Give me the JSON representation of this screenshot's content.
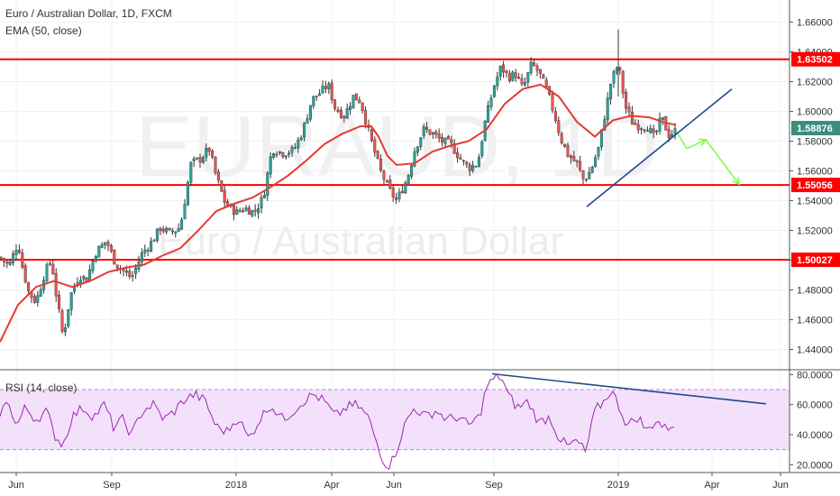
{
  "header": {
    "title": "Euro / Australian Dollar, 1D, FXCM",
    "indicator": "EMA (50, close)",
    "rsi_label": "RSI (14, close)"
  },
  "watermark": {
    "symbol": "EURAUD, 1D",
    "name": "Euro / Australian Dollar"
  },
  "colors": {
    "up": "#26a69a",
    "down": "#ef5350",
    "ema": "#e53935",
    "level": "#ff0000",
    "trend": "#1e4b8f",
    "projection": "#7cff4a",
    "rsi_line": "#9c27b0",
    "rsi_band": "#f3e1fb",
    "current_tag": "#3d8c7c"
  },
  "chart_data": {
    "type": "candlestick",
    "y_axis": {
      "range": [
        1.43,
        1.67
      ],
      "ticks": [
        "1.66000",
        "1.64000",
        "1.62000",
        "1.60000",
        "1.58000",
        "1.56000",
        "1.54000",
        "1.52000",
        "1.50000",
        "1.48000",
        "1.46000",
        "1.44000"
      ]
    },
    "x_axis": {
      "ticks": [
        "Jun",
        "Sep",
        "2018",
        "Apr",
        "Jun",
        "Sep",
        "2019",
        "Apr",
        "Jun"
      ]
    },
    "levels": [
      {
        "value": 1.63502,
        "label": "1.63502"
      },
      {
        "value": 1.55056,
        "label": "1.55056"
      },
      {
        "value": 1.50027,
        "label": "1.50027"
      }
    ],
    "current_price": {
      "value": 1.58876,
      "label": "1.58876"
    },
    "price_path": [
      [
        0,
        1.502
      ],
      [
        10,
        1.496
      ],
      [
        20,
        1.512
      ],
      [
        25,
        1.495
      ],
      [
        32,
        1.478
      ],
      [
        40,
        1.472
      ],
      [
        50,
        1.492
      ],
      [
        57,
        1.5
      ],
      [
        62,
        1.478
      ],
      [
        70,
        1.448
      ],
      [
        78,
        1.476
      ],
      [
        88,
        1.49
      ],
      [
        96,
        1.487
      ],
      [
        106,
        1.505
      ],
      [
        118,
        1.513
      ],
      [
        128,
        1.498
      ],
      [
        138,
        1.492
      ],
      [
        146,
        1.488
      ],
      [
        158,
        1.505
      ],
      [
        168,
        1.512
      ],
      [
        178,
        1.522
      ],
      [
        188,
        1.518
      ],
      [
        200,
        1.522
      ],
      [
        212,
        1.565
      ],
      [
        222,
        1.568
      ],
      [
        232,
        1.575
      ],
      [
        240,
        1.556
      ],
      [
        250,
        1.538
      ],
      [
        262,
        1.532
      ],
      [
        272,
        1.535
      ],
      [
        282,
        1.532
      ],
      [
        292,
        1.542
      ],
      [
        302,
        1.575
      ],
      [
        314,
        1.572
      ],
      [
        326,
        1.574
      ],
      [
        336,
        1.587
      ],
      [
        346,
        1.608
      ],
      [
        356,
        1.613
      ],
      [
        364,
        1.618
      ],
      [
        372,
        1.602
      ],
      [
        382,
        1.597
      ],
      [
        392,
        1.61
      ],
      [
        400,
        1.607
      ],
      [
        410,
        1.584
      ],
      [
        422,
        1.56
      ],
      [
        432,
        1.547
      ],
      [
        440,
        1.54
      ],
      [
        452,
        1.555
      ],
      [
        460,
        1.574
      ],
      [
        470,
        1.588
      ],
      [
        480,
        1.585
      ],
      [
        490,
        1.58
      ],
      [
        500,
        1.578
      ],
      [
        512,
        1.567
      ],
      [
        520,
        1.562
      ],
      [
        530,
        1.565
      ],
      [
        538,
        1.592
      ],
      [
        548,
        1.617
      ],
      [
        556,
        1.63
      ],
      [
        564,
        1.623
      ],
      [
        572,
        1.625
      ],
      [
        580,
        1.615
      ],
      [
        590,
        1.632
      ],
      [
        598,
        1.626
      ],
      [
        608,
        1.612
      ],
      [
        616,
        1.596
      ],
      [
        622,
        1.582
      ],
      [
        630,
        1.571
      ],
      [
        640,
        1.565
      ],
      [
        648,
        1.553
      ],
      [
        656,
        1.561
      ],
      [
        664,
        1.575
      ],
      [
        670,
        1.594
      ],
      [
        678,
        1.62
      ],
      [
        686,
        1.632
      ],
      [
        694,
        1.603
      ],
      [
        702,
        1.592
      ],
      [
        710,
        1.59
      ],
      [
        718,
        1.59
      ],
      [
        726,
        1.582
      ],
      [
        734,
        1.596
      ],
      [
        742,
        1.584
      ],
      [
        750,
        1.587
      ]
    ],
    "ema_path": [
      [
        0,
        1.445
      ],
      [
        20,
        1.47
      ],
      [
        40,
        1.482
      ],
      [
        60,
        1.486
      ],
      [
        80,
        1.482
      ],
      [
        100,
        1.486
      ],
      [
        120,
        1.492
      ],
      [
        140,
        1.495
      ],
      [
        160,
        1.497
      ],
      [
        180,
        1.503
      ],
      [
        200,
        1.508
      ],
      [
        220,
        1.52
      ],
      [
        240,
        1.533
      ],
      [
        260,
        1.538
      ],
      [
        280,
        1.542
      ],
      [
        300,
        1.549
      ],
      [
        320,
        1.557
      ],
      [
        340,
        1.567
      ],
      [
        360,
        1.578
      ],
      [
        380,
        1.585
      ],
      [
        400,
        1.59
      ],
      [
        412,
        1.59
      ],
      [
        420,
        1.583
      ],
      [
        430,
        1.57
      ],
      [
        440,
        1.564
      ],
      [
        460,
        1.565
      ],
      [
        480,
        1.573
      ],
      [
        500,
        1.577
      ],
      [
        520,
        1.58
      ],
      [
        540,
        1.588
      ],
      [
        560,
        1.605
      ],
      [
        580,
        1.615
      ],
      [
        600,
        1.618
      ],
      [
        620,
        1.61
      ],
      [
        640,
        1.593
      ],
      [
        660,
        1.583
      ],
      [
        680,
        1.594
      ],
      [
        700,
        1.597
      ],
      [
        720,
        1.596
      ],
      [
        740,
        1.592
      ],
      [
        750,
        1.591
      ]
    ],
    "rsi": {
      "y_axis": {
        "range": [
          16,
          82
        ],
        "ticks": [
          "80.0000",
          "60.0000",
          "40.0000",
          "20.0000"
        ]
      },
      "band": [
        30,
        70
      ],
      "path": [
        [
          0,
          55
        ],
        [
          10,
          62
        ],
        [
          18,
          45
        ],
        [
          28,
          58
        ],
        [
          40,
          50
        ],
        [
          52,
          56
        ],
        [
          60,
          40
        ],
        [
          70,
          33
        ],
        [
          80,
          52
        ],
        [
          92,
          58
        ],
        [
          104,
          52
        ],
        [
          116,
          60
        ],
        [
          126,
          45
        ],
        [
          136,
          50
        ],
        [
          146,
          40
        ],
        [
          158,
          56
        ],
        [
          170,
          60
        ],
        [
          182,
          50
        ],
        [
          194,
          56
        ],
        [
          204,
          63
        ],
        [
          216,
          67
        ],
        [
          228,
          62
        ],
        [
          240,
          45
        ],
        [
          252,
          42
        ],
        [
          264,
          52
        ],
        [
          276,
          37
        ],
        [
          288,
          50
        ],
        [
          300,
          60
        ],
        [
          314,
          50
        ],
        [
          326,
          56
        ],
        [
          336,
          62
        ],
        [
          348,
          67
        ],
        [
          360,
          62
        ],
        [
          372,
          52
        ],
        [
          384,
          58
        ],
        [
          396,
          60
        ],
        [
          408,
          52
        ],
        [
          418,
          35
        ],
        [
          426,
          22
        ],
        [
          432,
          18
        ],
        [
          440,
          30
        ],
        [
          450,
          48
        ],
        [
          460,
          58
        ],
        [
          472,
          52
        ],
        [
          484,
          56
        ],
        [
          496,
          50
        ],
        [
          508,
          52
        ],
        [
          520,
          46
        ],
        [
          532,
          52
        ],
        [
          540,
          72
        ],
        [
          548,
          77
        ],
        [
          556,
          79
        ],
        [
          564,
          66
        ],
        [
          574,
          58
        ],
        [
          586,
          62
        ],
        [
          598,
          48
        ],
        [
          610,
          52
        ],
        [
          620,
          38
        ],
        [
          630,
          32
        ],
        [
          640,
          36
        ],
        [
          650,
          28
        ],
        [
          660,
          56
        ],
        [
          670,
          62
        ],
        [
          678,
          70
        ],
        [
          686,
          60
        ],
        [
          696,
          46
        ],
        [
          708,
          52
        ],
        [
          718,
          42
        ],
        [
          728,
          50
        ],
        [
          738,
          44
        ],
        [
          750,
          48
        ]
      ]
    },
    "trendlines": [
      {
        "from": [
          651,
          1.536
        ],
        "to": [
          812,
          1.615
        ]
      }
    ],
    "rsi_trendlines": [
      {
        "from": [
          546,
          80.5
        ],
        "to": [
          850,
          60.5
        ]
      }
    ],
    "projection": [
      [
        752,
        1.585
      ],
      [
        762,
        1.575
      ],
      [
        783,
        1.581
      ],
      [
        820,
        1.551
      ]
    ]
  }
}
